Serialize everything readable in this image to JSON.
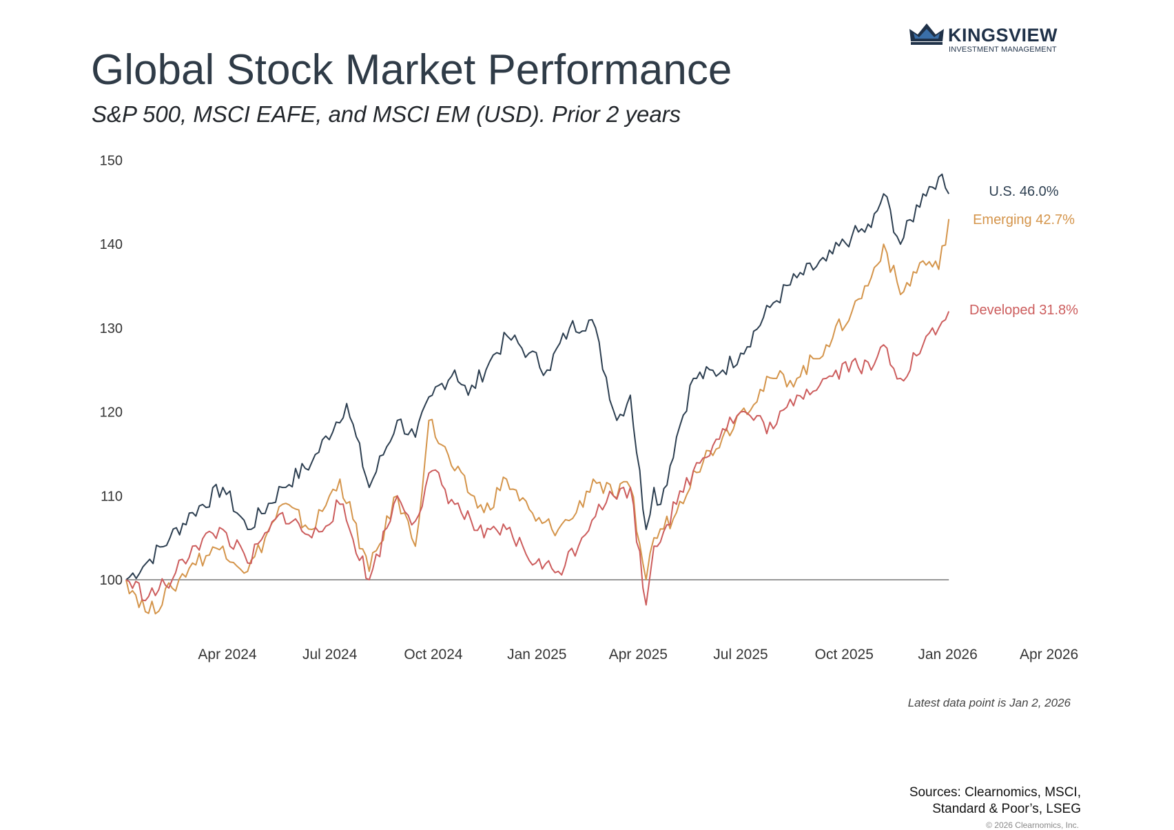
{
  "logo": {
    "brand": "KINGSVIEW",
    "tagline": "INVESTMENT MANAGEMENT",
    "color": "#1f3148"
  },
  "title": "Global Stock Market Performance",
  "subtitle": "S&P 500, MSCI EAFE, and MSCI EM (USD). Prior 2 years",
  "note": "Latest data point is Jan 2, 2026",
  "sources": "Sources: Clearnomics, MSCI,\nStandard & Poor’s, LSEG",
  "copyright": "© 2026 Clearnomics, Inc.",
  "chart_data": {
    "type": "line",
    "title": "Global Stock Market Performance",
    "ylim": [
      95,
      150
    ],
    "yticks": [
      100,
      110,
      120,
      130,
      140,
      150
    ],
    "xlim": [
      "2024-01-02",
      "2026-04-30"
    ],
    "xticks": [
      "2024-04-01",
      "2024-07-01",
      "2024-10-01",
      "2025-01-01",
      "2025-04-01",
      "2025-07-01",
      "2025-10-01",
      "2026-01-01",
      "2026-04-01"
    ],
    "xtick_labels": [
      "Apr 2024",
      "Jul 2024",
      "Oct 2024",
      "Jan 2025",
      "Apr 2025",
      "Jul 2025",
      "Oct 2025",
      "Jan 2026",
      "Apr 2026"
    ],
    "baseline": 100,
    "grid": false,
    "legend": "direct labels at right end of lines",
    "series": [
      {
        "name": "U.S.",
        "label": "U.S. 46.0%",
        "color": "#2c3e50",
        "points": [
          [
            "2024-01-02",
            100
          ],
          [
            "2024-01-20",
            102
          ],
          [
            "2024-02-10",
            105
          ],
          [
            "2024-03-01",
            108
          ],
          [
            "2024-03-28",
            111
          ],
          [
            "2024-04-19",
            106
          ],
          [
            "2024-05-20",
            111
          ],
          [
            "2024-06-15",
            114
          ],
          [
            "2024-07-16",
            121
          ],
          [
            "2024-08-05",
            111
          ],
          [
            "2024-08-30",
            119
          ],
          [
            "2024-09-15",
            117
          ],
          [
            "2024-09-30",
            122
          ],
          [
            "2024-10-20",
            125
          ],
          [
            "2024-11-01",
            122
          ],
          [
            "2024-11-20",
            126
          ],
          [
            "2024-12-06",
            129
          ],
          [
            "2024-12-25",
            127
          ],
          [
            "2025-01-10",
            125
          ],
          [
            "2025-01-30",
            130
          ],
          [
            "2025-02-19",
            131
          ],
          [
            "2025-03-13",
            119
          ],
          [
            "2025-03-25",
            122
          ],
          [
            "2025-04-08",
            106
          ],
          [
            "2025-04-15",
            111
          ],
          [
            "2025-04-21",
            109
          ],
          [
            "2025-05-05",
            117
          ],
          [
            "2025-05-20",
            124
          ],
          [
            "2025-06-15",
            125
          ],
          [
            "2025-07-01",
            127
          ],
          [
            "2025-07-30",
            133
          ],
          [
            "2025-08-20",
            136
          ],
          [
            "2025-09-15",
            138
          ],
          [
            "2025-10-08",
            141
          ],
          [
            "2025-10-25",
            142
          ],
          [
            "2025-11-05",
            146
          ],
          [
            "2025-11-20",
            140
          ],
          [
            "2025-12-10",
            146
          ],
          [
            "2025-12-24",
            148
          ],
          [
            "2026-01-02",
            146
          ]
        ]
      },
      {
        "name": "Emerging",
        "label": "Emerging 42.7%",
        "color": "#d4944a",
        "points": [
          [
            "2024-01-02",
            100
          ],
          [
            "2024-01-22",
            96
          ],
          [
            "2024-02-12",
            99
          ],
          [
            "2024-03-01",
            102
          ],
          [
            "2024-03-28",
            104
          ],
          [
            "2024-04-19",
            101
          ],
          [
            "2024-05-20",
            109
          ],
          [
            "2024-06-15",
            106
          ],
          [
            "2024-07-10",
            112
          ],
          [
            "2024-08-05",
            101
          ],
          [
            "2024-08-30",
            110
          ],
          [
            "2024-09-15",
            104
          ],
          [
            "2024-09-27",
            119
          ],
          [
            "2024-10-20",
            113
          ],
          [
            "2024-11-15",
            108
          ],
          [
            "2024-12-05",
            112
          ],
          [
            "2024-12-31",
            107
          ],
          [
            "2025-01-20",
            106
          ],
          [
            "2025-02-05",
            108
          ],
          [
            "2025-02-20",
            112
          ],
          [
            "2025-03-10",
            110
          ],
          [
            "2025-03-25",
            111
          ],
          [
            "2025-04-08",
            100
          ],
          [
            "2025-04-15",
            105
          ],
          [
            "2025-05-05",
            108
          ],
          [
            "2025-05-20",
            113
          ],
          [
            "2025-06-15",
            117
          ],
          [
            "2025-07-01",
            120
          ],
          [
            "2025-07-30",
            124
          ],
          [
            "2025-08-20",
            124
          ],
          [
            "2025-09-15",
            128
          ],
          [
            "2025-10-08",
            132
          ],
          [
            "2025-10-25",
            136
          ],
          [
            "2025-11-05",
            140
          ],
          [
            "2025-11-20",
            134
          ],
          [
            "2025-12-10",
            138
          ],
          [
            "2025-12-24",
            137
          ],
          [
            "2026-01-02",
            143
          ]
        ]
      },
      {
        "name": "Developed",
        "label": "Developed 31.8%",
        "color": "#cc5c5c",
        "points": [
          [
            "2024-01-02",
            100
          ],
          [
            "2024-01-22",
            98
          ],
          [
            "2024-02-12",
            100
          ],
          [
            "2024-03-01",
            104
          ],
          [
            "2024-03-28",
            106
          ],
          [
            "2024-04-19",
            102
          ],
          [
            "2024-05-20",
            108
          ],
          [
            "2024-06-15",
            105
          ],
          [
            "2024-07-10",
            109
          ],
          [
            "2024-08-05",
            100
          ],
          [
            "2024-08-30",
            110
          ],
          [
            "2024-09-15",
            107
          ],
          [
            "2024-09-30",
            113
          ],
          [
            "2024-10-20",
            109
          ],
          [
            "2024-11-15",
            105
          ],
          [
            "2024-12-05",
            106
          ],
          [
            "2024-12-31",
            102
          ],
          [
            "2025-01-20",
            101
          ],
          [
            "2025-02-10",
            105
          ],
          [
            "2025-02-25",
            109
          ],
          [
            "2025-03-10",
            110
          ],
          [
            "2025-03-25",
            111
          ],
          [
            "2025-04-08",
            97
          ],
          [
            "2025-04-15",
            104
          ],
          [
            "2025-05-05",
            109
          ],
          [
            "2025-05-20",
            113
          ],
          [
            "2025-06-15",
            118
          ],
          [
            "2025-07-01",
            120
          ],
          [
            "2025-07-30",
            118
          ],
          [
            "2025-08-20",
            122
          ],
          [
            "2025-09-15",
            124
          ],
          [
            "2025-10-08",
            126
          ],
          [
            "2025-10-25",
            125
          ],
          [
            "2025-11-05",
            128
          ],
          [
            "2025-11-20",
            124
          ],
          [
            "2025-12-10",
            128
          ],
          [
            "2025-12-24",
            130
          ],
          [
            "2026-01-02",
            132
          ]
        ]
      }
    ]
  }
}
